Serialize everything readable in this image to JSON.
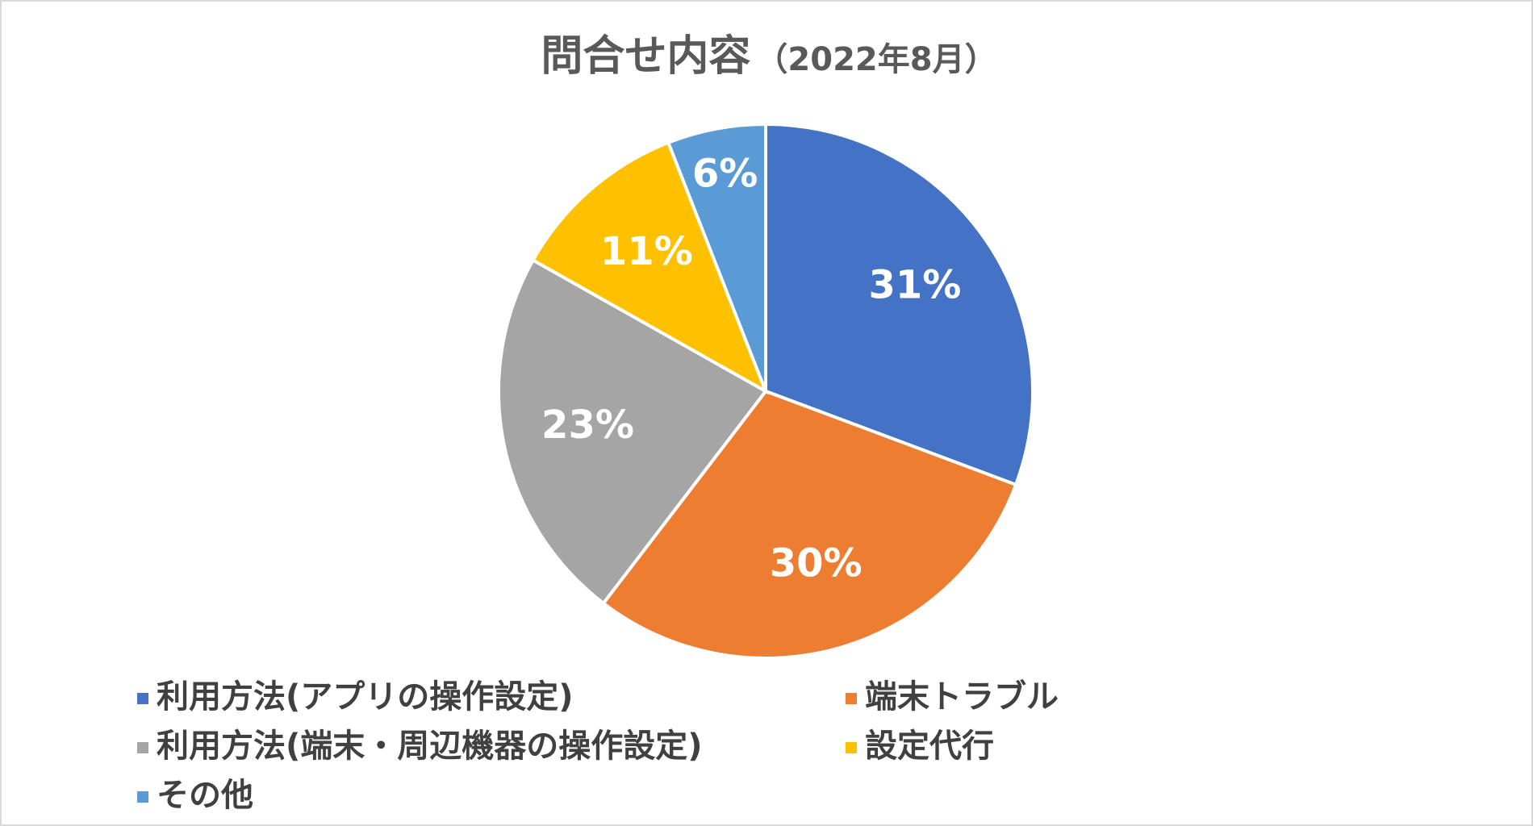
{
  "chart_data": {
    "type": "pie",
    "title": "問合せ内容",
    "subtitle": "（2022年8月）",
    "categories": [
      "利用方法(アプリの操作設定)",
      "端末トラブル",
      "利用方法(端末・周辺機器の操作設定)",
      "設定代行",
      "その他"
    ],
    "values": [
      31,
      30,
      23,
      11,
      6
    ],
    "value_labels": [
      "31%",
      "30%",
      "23%",
      "11%",
      "6%"
    ],
    "colors": [
      "#4472c4",
      "#ed7d31",
      "#a5a5a5",
      "#ffc000",
      "#5b9bd5"
    ],
    "legend": "bottom"
  }
}
